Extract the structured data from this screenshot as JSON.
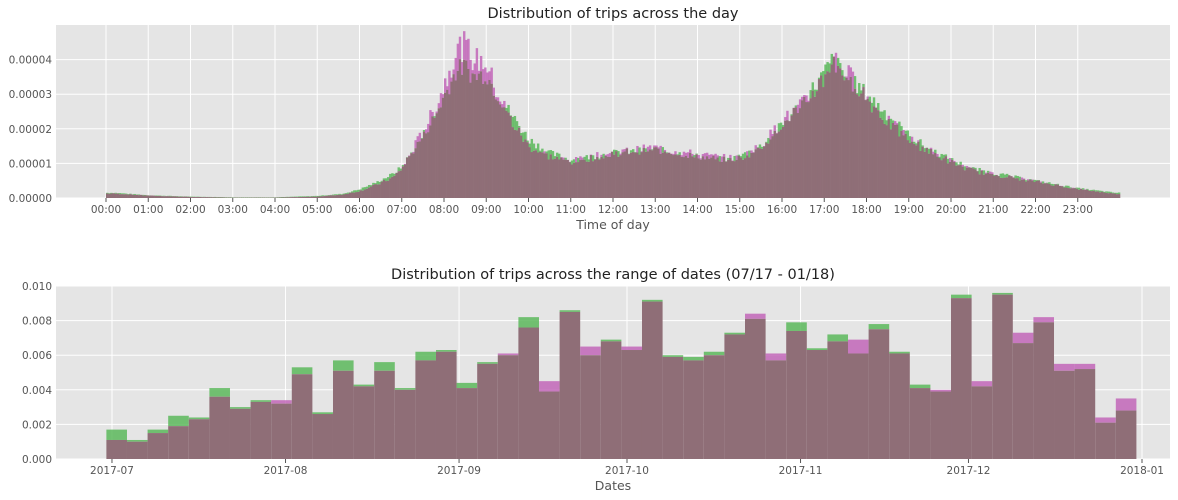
{
  "colors": {
    "plot_bg": "#e5e5e5",
    "grid": "#ffffff",
    "series_a": "#5cb85c",
    "series_b": "#c266b8",
    "overlap": "#8f6e77"
  },
  "top_chart": {
    "title": "Distribution of trips across the day",
    "xlabel": "Time of day",
    "y_ticks": [
      "0.00000",
      "0.00001",
      "0.00002",
      "0.00003",
      "0.00004"
    ],
    "x_ticks": [
      "00:00",
      "01:00",
      "02:00",
      "03:00",
      "04:00",
      "05:00",
      "06:00",
      "07:00",
      "08:00",
      "09:00",
      "10:00",
      "11:00",
      "12:00",
      "13:00",
      "14:00",
      "15:00",
      "16:00",
      "17:00",
      "18:00",
      "19:00",
      "20:00",
      "21:00",
      "22:00",
      "23:00"
    ]
  },
  "bottom_chart": {
    "title": "Distribution of trips across the range of dates (07/17 - 01/18)",
    "xlabel": "Dates",
    "y_ticks": [
      "0.000",
      "0.002",
      "0.004",
      "0.006",
      "0.008",
      "0.010"
    ],
    "x_ticks": [
      "2017-07",
      "2017-08",
      "2017-09",
      "2017-10",
      "2017-11",
      "2017-12",
      "2018-01"
    ]
  },
  "chart_data": [
    {
      "type": "histogram",
      "title": "Distribution of trips across the day",
      "xlabel": "Time of day",
      "ylabel": "",
      "xlim": [
        0,
        24
      ],
      "ylim": [
        0,
        5e-05
      ],
      "grid": true,
      "series": [
        {
          "color": "#5cb85c",
          "interp": "hour-of-day",
          "points": [
            [
              0,
              1.5e-06
            ],
            [
              0.2,
              1.5e-06
            ],
            [
              1,
              8e-07
            ],
            [
              2,
              4e-07
            ],
            [
              3,
              2e-07
            ],
            [
              4,
              2e-07
            ],
            [
              5,
              6e-07
            ],
            [
              5.6,
              1.2e-06
            ],
            [
              6,
              2.5e-06
            ],
            [
              6.4,
              4.5e-06
            ],
            [
              6.8,
              7e-06
            ],
            [
              7,
              9e-06
            ],
            [
              7.4,
              1.6e-05
            ],
            [
              7.8,
              2.4e-05
            ],
            [
              8.1,
              3.2e-05
            ],
            [
              8.3,
              3.7e-05
            ],
            [
              8.5,
              3.8e-05
            ],
            [
              8.7,
              3.5e-05
            ],
            [
              9,
              3.6e-05
            ],
            [
              9.2,
              3.1e-05
            ],
            [
              9.6,
              2.4e-05
            ],
            [
              10,
              1.7e-05
            ],
            [
              10.5,
              1.3e-05
            ],
            [
              11,
              1.1e-05
            ],
            [
              12,
              1.3e-05
            ],
            [
              13,
              1.4e-05
            ],
            [
              14,
              1.2e-05
            ],
            [
              14.7,
              1.1e-05
            ],
            [
              15,
              1.2e-05
            ],
            [
              15.5,
              1.5e-05
            ],
            [
              16,
              2.1e-05
            ],
            [
              16.5,
              2.8e-05
            ],
            [
              17,
              3.6e-05
            ],
            [
              17.2,
              4e-05
            ],
            [
              17.5,
              3.5e-05
            ],
            [
              17.8,
              3.2e-05
            ],
            [
              18,
              3e-05
            ],
            [
              18.5,
              2.4e-05
            ],
            [
              19,
              1.8e-05
            ],
            [
              19.5,
              1.4e-05
            ],
            [
              20,
              1.1e-05
            ],
            [
              20.5,
              8.5e-06
            ],
            [
              21,
              7.2e-06
            ],
            [
              22,
              5e-06
            ],
            [
              23,
              2.8e-06
            ],
            [
              23.9,
              1.5e-06
            ]
          ]
        },
        {
          "color": "#c266b8",
          "interp": "hour-of-day",
          "points": [
            [
              0,
              1.3e-06
            ],
            [
              0.2,
              1.3e-06
            ],
            [
              1,
              7e-07
            ],
            [
              2,
              3e-07
            ],
            [
              3,
              1e-07
            ],
            [
              4,
              1e-07
            ],
            [
              5,
              4e-07
            ],
            [
              5.6,
              1e-06
            ],
            [
              6,
              2e-06
            ],
            [
              6.4,
              3.8e-06
            ],
            [
              6.8,
              6e-06
            ],
            [
              7,
              8.5e-06
            ],
            [
              7.4,
              1.7e-05
            ],
            [
              7.8,
              2.6e-05
            ],
            [
              8.1,
              3.6e-05
            ],
            [
              8.3,
              4.3e-05
            ],
            [
              8.5,
              4.4e-05
            ],
            [
              8.7,
              4e-05
            ],
            [
              9,
              3.9e-05
            ],
            [
              9.2,
              3.2e-05
            ],
            [
              9.6,
              2.2e-05
            ],
            [
              10,
              1.5e-05
            ],
            [
              10.5,
              1.2e-05
            ],
            [
              11,
              1.05e-05
            ],
            [
              12,
              1.3e-05
            ],
            [
              13,
              1.45e-05
            ],
            [
              14,
              1.25e-05
            ],
            [
              14.7,
              1.15e-05
            ],
            [
              15,
              1.15e-05
            ],
            [
              15.5,
              1.5e-05
            ],
            [
              16,
              2.2e-05
            ],
            [
              16.5,
              2.7e-05
            ],
            [
              17,
              3.5e-05
            ],
            [
              17.2,
              4.1e-05
            ],
            [
              17.5,
              3.6e-05
            ],
            [
              17.8,
              3.3e-05
            ],
            [
              18,
              2.9e-05
            ],
            [
              18.5,
              2.2e-05
            ],
            [
              19,
              1.7e-05
            ],
            [
              19.5,
              1.35e-05
            ],
            [
              20,
              1.05e-05
            ],
            [
              20.5,
              8e-06
            ],
            [
              21,
              6.8e-06
            ],
            [
              22,
              4.8e-06
            ],
            [
              23,
              2.6e-06
            ],
            [
              23.9,
              1.2e-06
            ]
          ]
        }
      ]
    },
    {
      "type": "histogram",
      "title": "Distribution of trips across the range of dates (07/17 - 01/18)",
      "xlabel": "Dates",
      "ylabel": "",
      "xlim": [
        "2017-06-21",
        "2018-01-06"
      ],
      "ylim": [
        0,
        0.01
      ],
      "grid": true,
      "bin_start": "2017-06-30",
      "bin_end": "2017-12-31",
      "series": [
        {
          "color": "#5cb85c",
          "values": [
            0.0017,
            0.0011,
            0.0017,
            0.0025,
            0.0024,
            0.0041,
            0.003,
            0.0034,
            0.0032,
            0.0053,
            0.0027,
            0.0057,
            0.0043,
            0.0056,
            0.0041,
            0.0062,
            0.0063,
            0.0044,
            0.0056,
            0.006,
            0.0082,
            0.0039,
            0.0086,
            0.006,
            0.0069,
            0.0063,
            0.0092,
            0.006,
            0.0059,
            0.0062,
            0.0073,
            0.0081,
            0.0057,
            0.0079,
            0.0064,
            0.0072,
            0.0061,
            0.0078,
            0.0062,
            0.0043,
            0.0039,
            0.0095,
            0.0042,
            0.0096,
            0.0067,
            0.0079,
            0.0051,
            0.0052,
            0.0021,
            0.0028
          ]
        },
        {
          "color": "#c266b8",
          "values": [
            0.0011,
            0.001,
            0.0015,
            0.0019,
            0.0023,
            0.0036,
            0.0029,
            0.0033,
            0.0034,
            0.0049,
            0.0026,
            0.0051,
            0.0042,
            0.0051,
            0.004,
            0.0057,
            0.0062,
            0.0041,
            0.0055,
            0.0061,
            0.0076,
            0.0045,
            0.0085,
            0.0065,
            0.0068,
            0.0065,
            0.0091,
            0.0059,
            0.0057,
            0.006,
            0.0072,
            0.0084,
            0.0061,
            0.0074,
            0.0063,
            0.0068,
            0.0069,
            0.0075,
            0.0061,
            0.0041,
            0.004,
            0.0093,
            0.0045,
            0.0095,
            0.0073,
            0.0082,
            0.0055,
            0.0055,
            0.0024,
            0.0035
          ]
        }
      ]
    }
  ]
}
